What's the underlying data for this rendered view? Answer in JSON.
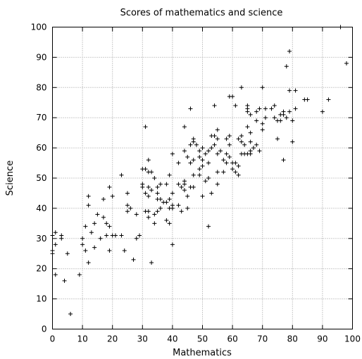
{
  "chart_data": {
    "type": "scatter",
    "title": "Scores of mathematics and science",
    "xlabel": "Mathematics",
    "ylabel": "Science",
    "xlim": [
      0,
      100
    ],
    "ylim": [
      0,
      100
    ],
    "xticks": [
      0,
      10,
      20,
      30,
      40,
      50,
      60,
      70,
      80,
      90,
      100
    ],
    "yticks": [
      0,
      10,
      20,
      30,
      40,
      50,
      60,
      70,
      80,
      90,
      100
    ],
    "grid": true,
    "marker": "plus",
    "marker_color": "#000000",
    "points": [
      [
        0,
        31
      ],
      [
        0,
        26
      ],
      [
        0,
        25
      ],
      [
        1,
        32
      ],
      [
        1,
        28
      ],
      [
        1,
        18
      ],
      [
        3,
        31
      ],
      [
        3,
        30
      ],
      [
        4,
        16
      ],
      [
        5,
        25
      ],
      [
        6,
        5
      ],
      [
        9,
        18
      ],
      [
        10,
        30
      ],
      [
        10,
        28
      ],
      [
        11,
        34
      ],
      [
        11,
        26
      ],
      [
        12,
        44
      ],
      [
        12,
        41
      ],
      [
        12,
        22
      ],
      [
        13,
        32
      ],
      [
        14,
        27
      ],
      [
        14,
        35
      ],
      [
        15,
        38
      ],
      [
        16,
        30
      ],
      [
        17,
        37
      ],
      [
        17,
        43
      ],
      [
        18,
        35
      ],
      [
        18,
        31
      ],
      [
        19,
        47
      ],
      [
        19,
        34
      ],
      [
        19,
        26
      ],
      [
        20,
        44
      ],
      [
        20,
        31
      ],
      [
        21,
        31
      ],
      [
        23,
        51
      ],
      [
        23,
        31
      ],
      [
        24,
        26
      ],
      [
        25,
        45
      ],
      [
        25,
        41
      ],
      [
        25,
        39
      ],
      [
        26,
        40
      ],
      [
        27,
        23
      ],
      [
        28,
        38
      ],
      [
        28,
        30
      ],
      [
        29,
        31
      ],
      [
        30,
        53
      ],
      [
        30,
        48
      ],
      [
        30,
        47
      ],
      [
        31,
        53
      ],
      [
        31,
        67
      ],
      [
        31,
        45
      ],
      [
        31,
        39
      ],
      [
        32,
        56
      ],
      [
        32,
        52
      ],
      [
        32,
        47
      ],
      [
        32,
        44
      ],
      [
        32,
        37
      ],
      [
        32,
        39
      ],
      [
        33,
        52
      ],
      [
        33,
        46
      ],
      [
        33,
        22
      ],
      [
        34,
        50
      ],
      [
        34,
        38
      ],
      [
        34,
        35
      ],
      [
        35,
        47
      ],
      [
        35,
        45
      ],
      [
        35,
        43
      ],
      [
        35,
        39
      ],
      [
        36,
        48
      ],
      [
        36,
        43
      ],
      [
        36,
        40
      ],
      [
        37,
        42
      ],
      [
        38,
        48
      ],
      [
        38,
        42
      ],
      [
        38,
        36
      ],
      [
        39,
        51
      ],
      [
        39,
        43
      ],
      [
        39,
        40
      ],
      [
        39,
        35
      ],
      [
        40,
        58
      ],
      [
        40,
        45
      ],
      [
        40,
        41
      ],
      [
        40,
        40
      ],
      [
        40,
        28
      ],
      [
        42,
        55
      ],
      [
        42,
        48
      ],
      [
        42,
        41
      ],
      [
        43,
        47
      ],
      [
        43,
        39
      ],
      [
        44,
        67
      ],
      [
        44,
        59
      ],
      [
        44,
        49
      ],
      [
        44,
        48
      ],
      [
        44,
        46
      ],
      [
        45,
        57
      ],
      [
        45,
        44
      ],
      [
        45,
        40
      ],
      [
        46,
        73
      ],
      [
        46,
        61
      ],
      [
        46,
        55
      ],
      [
        46,
        47
      ],
      [
        47,
        63
      ],
      [
        47,
        62
      ],
      [
        47,
        56
      ],
      [
        47,
        51
      ],
      [
        47,
        47
      ],
      [
        48,
        61
      ],
      [
        49,
        59
      ],
      [
        49,
        57
      ],
      [
        49,
        53
      ],
      [
        49,
        51
      ],
      [
        50,
        60
      ],
      [
        50,
        56
      ],
      [
        50,
        54
      ],
      [
        50,
        44
      ],
      [
        51,
        58
      ],
      [
        51,
        49
      ],
      [
        52,
        59
      ],
      [
        52,
        55
      ],
      [
        52,
        50
      ],
      [
        52,
        34
      ],
      [
        53,
        64
      ],
      [
        53,
        60
      ],
      [
        53,
        45
      ],
      [
        54,
        74
      ],
      [
        54,
        64
      ],
      [
        54,
        61
      ],
      [
        55,
        66
      ],
      [
        55,
        63
      ],
      [
        55,
        58
      ],
      [
        55,
        52
      ],
      [
        55,
        48
      ],
      [
        56,
        59
      ],
      [
        57,
        56
      ],
      [
        57,
        52
      ],
      [
        58,
        63
      ],
      [
        58,
        58
      ],
      [
        58,
        55
      ],
      [
        59,
        77
      ],
      [
        59,
        64
      ],
      [
        59,
        61
      ],
      [
        59,
        57
      ],
      [
        60,
        77
      ],
      [
        60,
        55
      ],
      [
        60,
        53
      ],
      [
        61,
        74
      ],
      [
        61,
        55
      ],
      [
        61,
        52
      ],
      [
        62,
        63
      ],
      [
        62,
        54
      ],
      [
        62,
        51
      ],
      [
        63,
        80
      ],
      [
        63,
        64
      ],
      [
        63,
        62
      ],
      [
        63,
        58
      ],
      [
        64,
        61
      ],
      [
        64,
        58
      ],
      [
        65,
        74
      ],
      [
        65,
        73
      ],
      [
        65,
        72
      ],
      [
        65,
        67
      ],
      [
        65,
        58
      ],
      [
        66,
        71
      ],
      [
        66,
        65
      ],
      [
        66,
        62
      ],
      [
        66,
        59
      ],
      [
        66,
        58
      ],
      [
        67,
        60
      ],
      [
        68,
        72
      ],
      [
        68,
        69
      ],
      [
        68,
        61
      ],
      [
        69,
        73
      ],
      [
        69,
        59
      ],
      [
        70,
        80
      ],
      [
        70,
        68
      ],
      [
        70,
        66
      ],
      [
        71,
        70
      ],
      [
        71,
        73
      ],
      [
        73,
        73
      ],
      [
        74,
        74
      ],
      [
        74,
        70
      ],
      [
        75,
        69
      ],
      [
        75,
        63
      ],
      [
        76,
        71
      ],
      [
        76,
        69
      ],
      [
        77,
        72
      ],
      [
        77,
        71
      ],
      [
        77,
        56
      ],
      [
        78,
        87
      ],
      [
        78,
        70
      ],
      [
        79,
        92
      ],
      [
        79,
        79
      ],
      [
        79,
        72
      ],
      [
        80,
        69
      ],
      [
        80,
        62
      ],
      [
        81,
        79
      ],
      [
        81,
        73
      ],
      [
        84,
        76
      ],
      [
        85,
        76
      ],
      [
        90,
        72
      ],
      [
        92,
        76
      ],
      [
        96,
        100
      ],
      [
        98,
        88
      ]
    ]
  }
}
